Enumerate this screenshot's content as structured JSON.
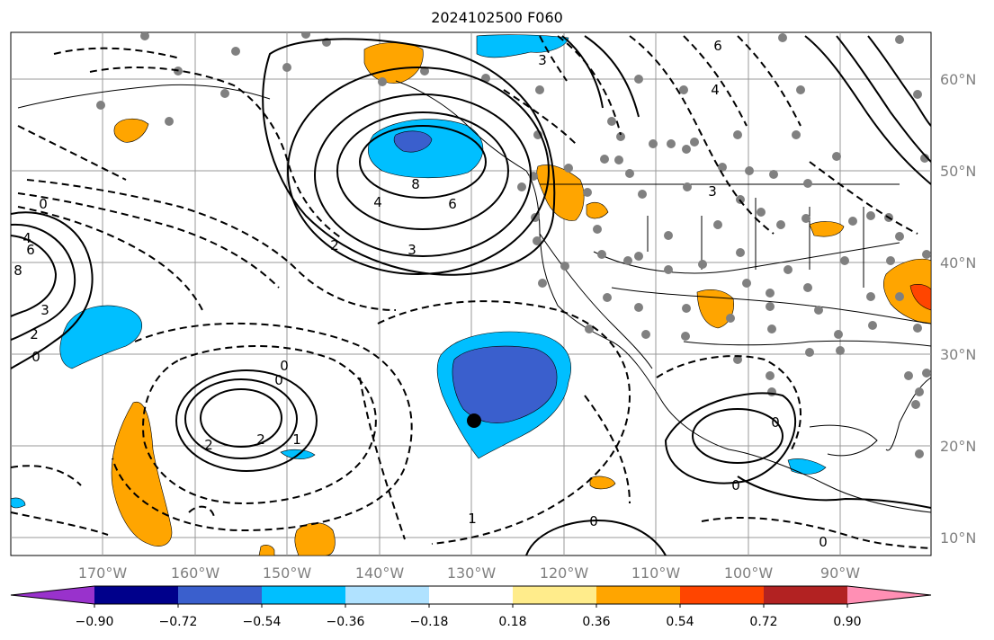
{
  "title": "2024102500 F060",
  "lon_ticks": [
    "170°W",
    "160°W",
    "150°W",
    "140°W",
    "130°W",
    "120°W",
    "110°W",
    "100°W",
    "90°W"
  ],
  "lat_ticks": [
    "60°N",
    "50°N",
    "40°N",
    "30°N",
    "20°N",
    "10°N"
  ],
  "colorbar": {
    "labels": [
      "−0.90",
      "−0.72",
      "−0.54",
      "−0.36",
      "−0.18",
      "0.18",
      "0.36",
      "0.54",
      "0.72",
      "0.90"
    ],
    "colors": [
      "#9932CC",
      "#00008B",
      "#3A5FCD",
      "#00BFFF",
      "#B0E2FF",
      "#FFFFFF",
      "#FFEC8B",
      "#FFA500",
      "#FF4500",
      "#B22222",
      "#FF8FB4"
    ]
  },
  "contour_labels": [
    {
      "text": "6",
      "pos": "upper-center"
    },
    {
      "text": "4",
      "pos": "north-pacific-low"
    },
    {
      "text": "8",
      "pos": "north-pacific-low"
    },
    {
      "text": "6",
      "pos": "north-pacific-low"
    },
    {
      "text": "3",
      "pos": "north-pacific-low"
    },
    {
      "text": "2",
      "pos": "north-pacific-low"
    },
    {
      "text": "0",
      "pos": "central-pacific"
    },
    {
      "text": "0",
      "pos": "central-pacific"
    },
    {
      "text": "2",
      "pos": "subtropical-low"
    },
    {
      "text": "2",
      "pos": "subtropical-low"
    },
    {
      "text": "1",
      "pos": "subtropical-low"
    },
    {
      "text": "0",
      "pos": "east-pacific"
    },
    {
      "text": "0",
      "pos": "east-pacific"
    },
    {
      "text": "1",
      "pos": "east-pacific"
    },
    {
      "text": "0",
      "pos": "east-pacific"
    },
    {
      "text": "3",
      "pos": "west"
    },
    {
      "text": "2",
      "pos": "west"
    },
    {
      "text": "0",
      "pos": "west"
    },
    {
      "text": "4",
      "pos": "west"
    },
    {
      "text": "6",
      "pos": "west"
    },
    {
      "text": "8",
      "pos": "west"
    },
    {
      "text": "4",
      "pos": "north-america"
    },
    {
      "text": "3",
      "pos": "north-america"
    },
    {
      "text": "3",
      "pos": "north-america"
    },
    {
      "text": "0",
      "pos": "south"
    },
    {
      "text": "0",
      "pos": "south"
    }
  ]
}
